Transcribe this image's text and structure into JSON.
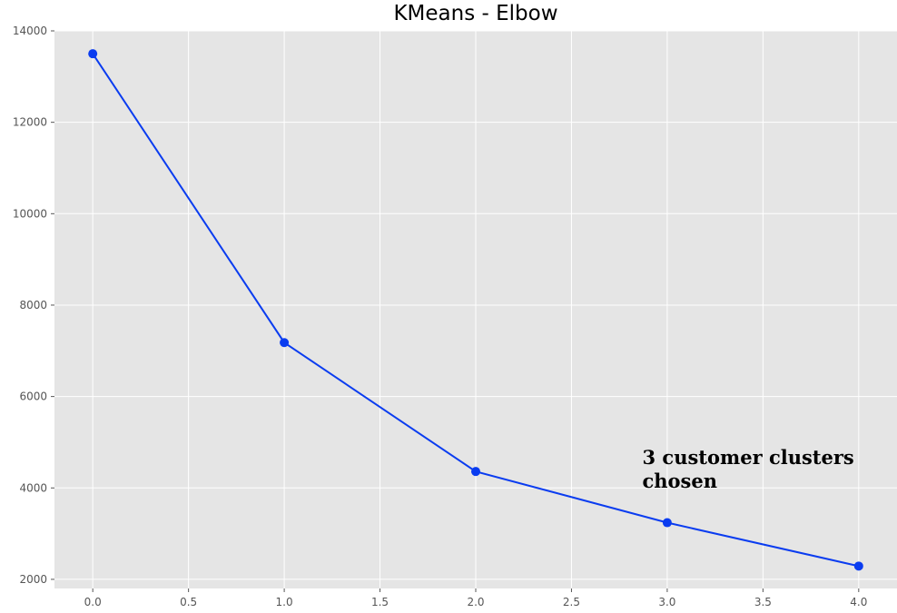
{
  "chart_data": {
    "type": "line",
    "title": "KMeans - Elbow",
    "xlabel": "",
    "ylabel": "",
    "x": [
      0,
      1,
      2,
      3,
      4
    ],
    "series": [
      {
        "values": [
          13500,
          7180,
          4360,
          3240,
          2290
        ],
        "color": "#0a3cf0",
        "marker": "circle"
      }
    ],
    "xlim": [
      -0.2,
      4.2
    ],
    "ylim": [
      1800,
      14000
    ],
    "xticks": [
      "0.0",
      "0.5",
      "1.0",
      "1.5",
      "2.0",
      "2.5",
      "3.0",
      "3.5",
      "4.0"
    ],
    "yticks": [
      "2000",
      "4000",
      "6000",
      "8000",
      "10000",
      "12000",
      "14000"
    ],
    "grid": true,
    "background": "#e5e5e5",
    "grid_color": "#ffffff",
    "annotation": {
      "lines": [
        "3 customer clusters",
        "chosen"
      ],
      "x": 2.87,
      "y": 4520
    }
  }
}
